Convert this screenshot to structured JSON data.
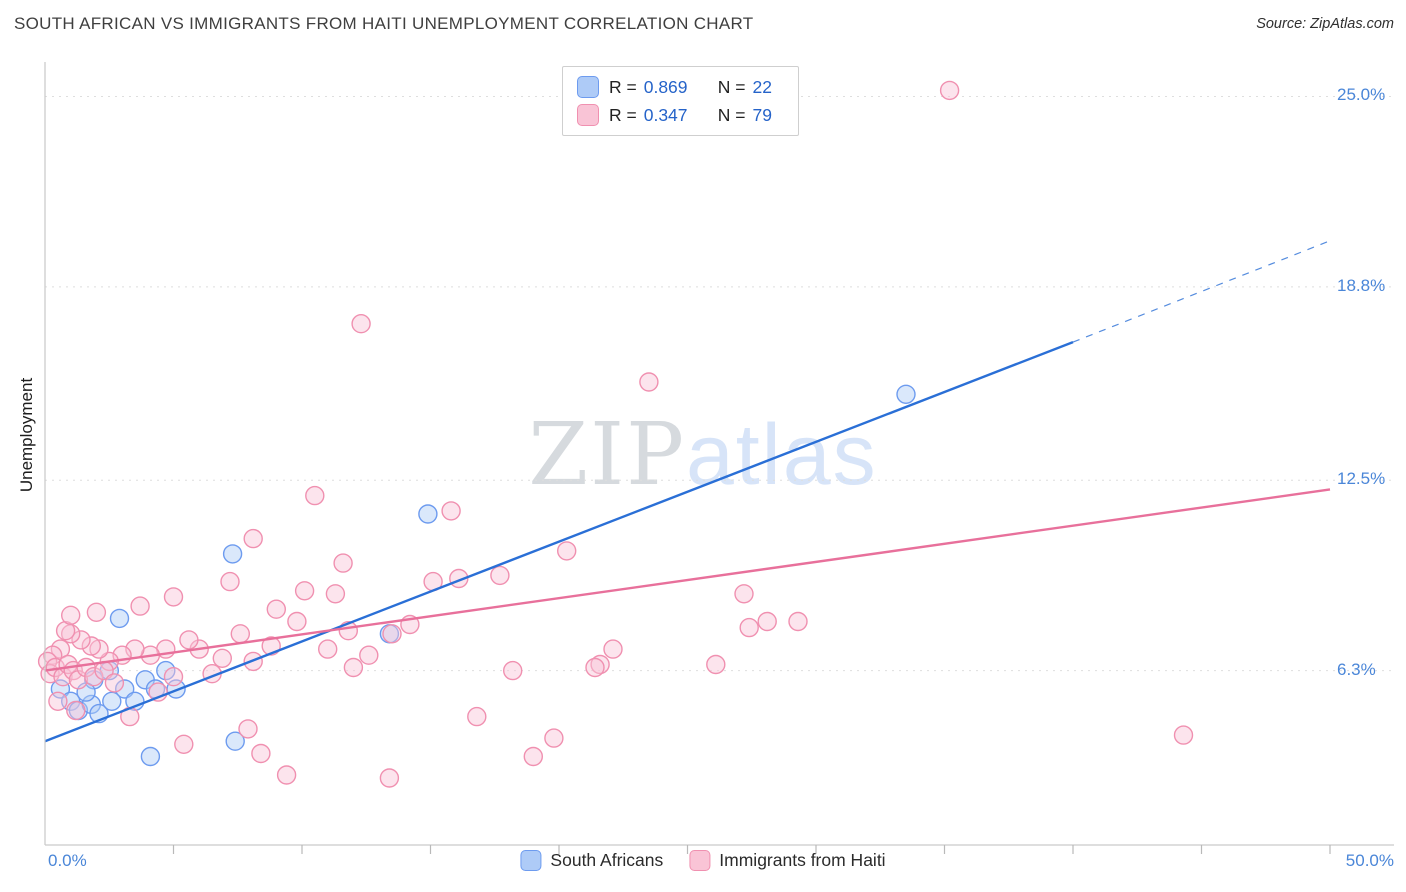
{
  "header": {
    "title": "SOUTH AFRICAN VS IMMIGRANTS FROM HAITI UNEMPLOYMENT CORRELATION CHART",
    "source": "Source: ZipAtlas.com"
  },
  "watermark": {
    "zip": "ZIP",
    "atlas": "atlas"
  },
  "axes": {
    "y_label": "Unemployment",
    "y_tick_labels": [
      "25.0%",
      "18.8%",
      "12.5%",
      "6.3%"
    ],
    "x_min_label": "0.0%",
    "x_max_label": "50.0%"
  },
  "legend_box": {
    "rows": [
      {
        "r_label": "R =",
        "r_value": "0.869",
        "n_label": "N =",
        "n_value": "22"
      },
      {
        "r_label": "R =",
        "r_value": "0.347",
        "n_label": "N =",
        "n_value": "79"
      }
    ]
  },
  "bottom_legend": {
    "items": [
      {
        "label": "South Africans"
      },
      {
        "label": "Immigrants from Haiti"
      }
    ]
  },
  "colors": {
    "blue_fill": "#aecbf7",
    "blue_stroke": "#6d9bef",
    "blue_line": "#2a6fd6",
    "pink_fill": "#f9c4d6",
    "pink_stroke": "#f090b0",
    "pink_line": "#e8709b",
    "axis_text": "#4a86d8",
    "grid": "#dedede",
    "axis_line": "#c9c9c9",
    "value_text": "#2563c9"
  },
  "chart_data": {
    "type": "scatter",
    "title": "SOUTH AFRICAN VS IMMIGRANTS FROM HAITI UNEMPLOYMENT CORRELATION CHART",
    "xlabel": "",
    "ylabel": "Unemployment",
    "x_range": [
      0,
      50
    ],
    "y_range": [
      0,
      26
    ],
    "x_tick_interval": 5,
    "y_gridlines": [
      6.3,
      12.5,
      18.8,
      25.0
    ],
    "legend_position": "bottom",
    "series": [
      {
        "name": "South Africans",
        "R": 0.869,
        "N": 22,
        "fill": "#aecbf7",
        "stroke": "#6d9bef",
        "line": "#2a6fd6",
        "dom_name": "south-africans",
        "points": [
          [
            0.6,
            5.7
          ],
          [
            1.0,
            5.3
          ],
          [
            1.3,
            5.0
          ],
          [
            1.8,
            5.2
          ],
          [
            2.1,
            4.9
          ],
          [
            2.6,
            5.3
          ],
          [
            3.1,
            5.7
          ],
          [
            3.5,
            5.3
          ],
          [
            2.9,
            8.0
          ],
          [
            3.9,
            6.0
          ],
          [
            4.3,
            5.7
          ],
          [
            4.7,
            6.3
          ],
          [
            5.1,
            5.7
          ],
          [
            4.1,
            3.5
          ],
          [
            7.4,
            4.0
          ],
          [
            7.3,
            10.1
          ],
          [
            14.9,
            11.4
          ],
          [
            13.4,
            7.5
          ],
          [
            33.5,
            15.3
          ],
          [
            1.9,
            6.0
          ],
          [
            2.5,
            6.3
          ],
          [
            1.6,
            5.6
          ]
        ],
        "trend": {
          "x1": 0,
          "y1": 4.0,
          "x2": 40,
          "y2": 17.0,
          "dash_to": [
            50,
            20.3
          ]
        }
      },
      {
        "name": "Immigrants from Haiti",
        "R": 0.347,
        "N": 79,
        "fill": "#f9c4d6",
        "stroke": "#f090b0",
        "line": "#e8709b",
        "dom_name": "immigrants-from-haiti",
        "points": [
          [
            35.2,
            25.2
          ],
          [
            12.3,
            17.6
          ],
          [
            23.5,
            15.7
          ],
          [
            10.5,
            12.0
          ],
          [
            15.8,
            11.5
          ],
          [
            8.1,
            10.6
          ],
          [
            15.1,
            9.2
          ],
          [
            16.1,
            9.3
          ],
          [
            17.7,
            9.4
          ],
          [
            20.3,
            10.2
          ],
          [
            11.6,
            9.8
          ],
          [
            11.3,
            8.8
          ],
          [
            10.1,
            8.9
          ],
          [
            7.2,
            9.2
          ],
          [
            5.0,
            8.7
          ],
          [
            9.8,
            7.9
          ],
          [
            11.8,
            7.6
          ],
          [
            13.5,
            7.5
          ],
          [
            14.2,
            7.8
          ],
          [
            12.6,
            6.8
          ],
          [
            11.0,
            7.0
          ],
          [
            8.8,
            7.1
          ],
          [
            8.1,
            6.6
          ],
          [
            6.9,
            6.7
          ],
          [
            6.0,
            7.0
          ],
          [
            5.6,
            7.3
          ],
          [
            4.7,
            7.0
          ],
          [
            4.1,
            6.8
          ],
          [
            3.5,
            7.0
          ],
          [
            3.0,
            6.8
          ],
          [
            2.5,
            6.6
          ],
          [
            2.1,
            7.0
          ],
          [
            1.8,
            7.1
          ],
          [
            1.4,
            7.3
          ],
          [
            1.0,
            7.5
          ],
          [
            0.6,
            7.0
          ],
          [
            0.3,
            6.8
          ],
          [
            0.1,
            6.6
          ],
          [
            0.5,
            5.3
          ],
          [
            1.2,
            5.0
          ],
          [
            3.3,
            4.8
          ],
          [
            5.4,
            3.9
          ],
          [
            7.9,
            4.4
          ],
          [
            8.4,
            3.6
          ],
          [
            9.4,
            2.9
          ],
          [
            13.4,
            2.8
          ],
          [
            19.0,
            3.5
          ],
          [
            16.8,
            4.8
          ],
          [
            22.1,
            7.0
          ],
          [
            21.6,
            6.5
          ],
          [
            26.1,
            6.5
          ],
          [
            27.4,
            7.7
          ],
          [
            27.2,
            8.8
          ],
          [
            28.1,
            7.9
          ],
          [
            29.3,
            7.9
          ],
          [
            44.3,
            4.2
          ],
          [
            19.8,
            4.1
          ],
          [
            18.2,
            6.3
          ],
          [
            21.4,
            6.4
          ],
          [
            0.2,
            6.2
          ],
          [
            0.4,
            6.4
          ],
          [
            0.7,
            6.1
          ],
          [
            0.9,
            6.5
          ],
          [
            1.1,
            6.3
          ],
          [
            1.3,
            6.0
          ],
          [
            1.6,
            6.4
          ],
          [
            1.9,
            6.1
          ],
          [
            2.3,
            6.3
          ],
          [
            2.7,
            5.9
          ],
          [
            0.8,
            7.6
          ],
          [
            1.0,
            8.1
          ],
          [
            2.0,
            8.2
          ],
          [
            3.7,
            8.4
          ],
          [
            5.0,
            6.1
          ],
          [
            4.4,
            5.6
          ],
          [
            6.5,
            6.2
          ],
          [
            7.6,
            7.5
          ],
          [
            9.0,
            8.3
          ],
          [
            12.0,
            6.4
          ]
        ],
        "trend": {
          "x1": 0,
          "y1": 6.3,
          "x2": 50,
          "y2": 12.2
        }
      }
    ]
  }
}
